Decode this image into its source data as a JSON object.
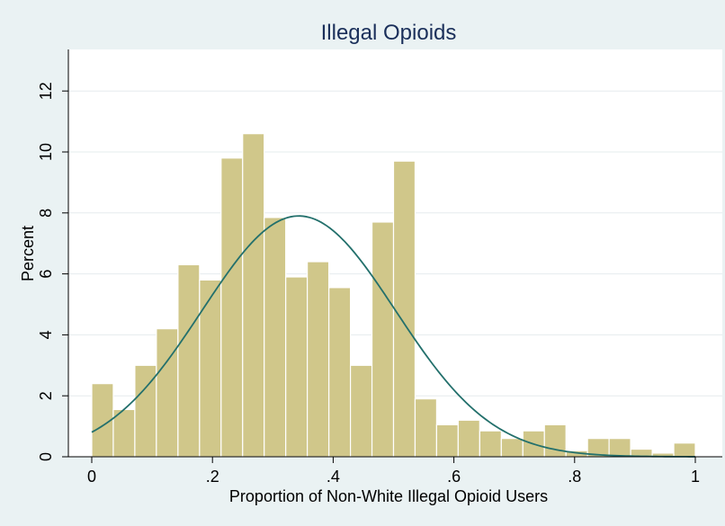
{
  "chart_data": {
    "type": "bar",
    "title": "Illegal Opioids",
    "xlabel": "Proportion of Non-White Illegal Opioid Users",
    "ylabel": "Percent",
    "xlim": [
      0,
      1
    ],
    "ylim": [
      0,
      13.5
    ],
    "x_ticks": [
      0,
      0.2,
      0.4,
      0.6,
      0.8,
      1
    ],
    "x_tick_labels": [
      "0",
      ".2",
      ".4",
      ".6",
      ".8",
      "1"
    ],
    "y_ticks": [
      0,
      2,
      4,
      6,
      8,
      10,
      12
    ],
    "y_tick_labels": [
      "0",
      "2",
      "4",
      "6",
      "8",
      "10",
      "12"
    ],
    "grid": true,
    "bin_width": 0.03571,
    "bins": [
      {
        "x0": 0.0,
        "value": 2.4
      },
      {
        "x0": 0.0357,
        "value": 1.55
      },
      {
        "x0": 0.0714,
        "value": 3.0
      },
      {
        "x0": 0.1071,
        "value": 4.2
      },
      {
        "x0": 0.1429,
        "value": 6.3
      },
      {
        "x0": 0.1786,
        "value": 5.8
      },
      {
        "x0": 0.2143,
        "value": 9.8
      },
      {
        "x0": 0.25,
        "value": 10.6
      },
      {
        "x0": 0.2857,
        "value": 7.85
      },
      {
        "x0": 0.3214,
        "value": 5.9
      },
      {
        "x0": 0.3571,
        "value": 6.4
      },
      {
        "x0": 0.3929,
        "value": 5.55
      },
      {
        "x0": 0.4286,
        "value": 3.0
      },
      {
        "x0": 0.4643,
        "value": 7.7
      },
      {
        "x0": 0.5,
        "value": 9.7
      },
      {
        "x0": 0.5357,
        "value": 1.9
      },
      {
        "x0": 0.5714,
        "value": 1.05
      },
      {
        "x0": 0.6071,
        "value": 1.2
      },
      {
        "x0": 0.6429,
        "value": 0.85
      },
      {
        "x0": 0.6786,
        "value": 0.6
      },
      {
        "x0": 0.7143,
        "value": 0.85
      },
      {
        "x0": 0.75,
        "value": 1.05
      },
      {
        "x0": 0.7857,
        "value": 0.2
      },
      {
        "x0": 0.8214,
        "value": 0.6
      },
      {
        "x0": 0.8571,
        "value": 0.6
      },
      {
        "x0": 0.8929,
        "value": 0.25
      },
      {
        "x0": 0.9286,
        "value": 0.12
      },
      {
        "x0": 0.9643,
        "value": 0.45
      }
    ],
    "normal_curve": {
      "mean": 0.343,
      "sd": 0.1605,
      "peak": 7.9
    },
    "colors": {
      "bar_fill": "#d0c78a",
      "bar_stroke": "#c0b66e",
      "curve": "#23706c",
      "plot_background": "#ffffff",
      "outer_background": "#eaf2f3",
      "grid": "#e6ecee",
      "title": "#1a2f5a"
    }
  }
}
